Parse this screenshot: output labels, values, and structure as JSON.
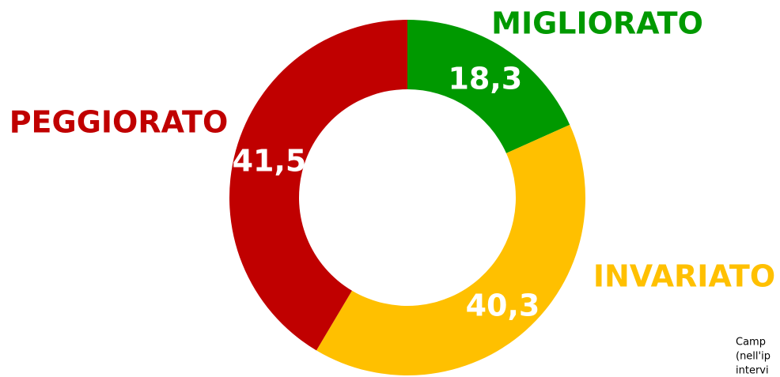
{
  "chart_data": {
    "type": "donut",
    "categories": [
      "MIGLIORATO",
      "INVARIATO",
      "PEGGIORATO"
    ],
    "values": [
      18.3,
      40.3,
      41.5
    ],
    "value_labels": [
      "18,3",
      "40,3",
      "41,5"
    ],
    "colors": [
      "#009900",
      "#ffc000",
      "#c00000"
    ],
    "notes": [
      "Camp",
      "(nell'ip",
      "intervi"
    ]
  }
}
